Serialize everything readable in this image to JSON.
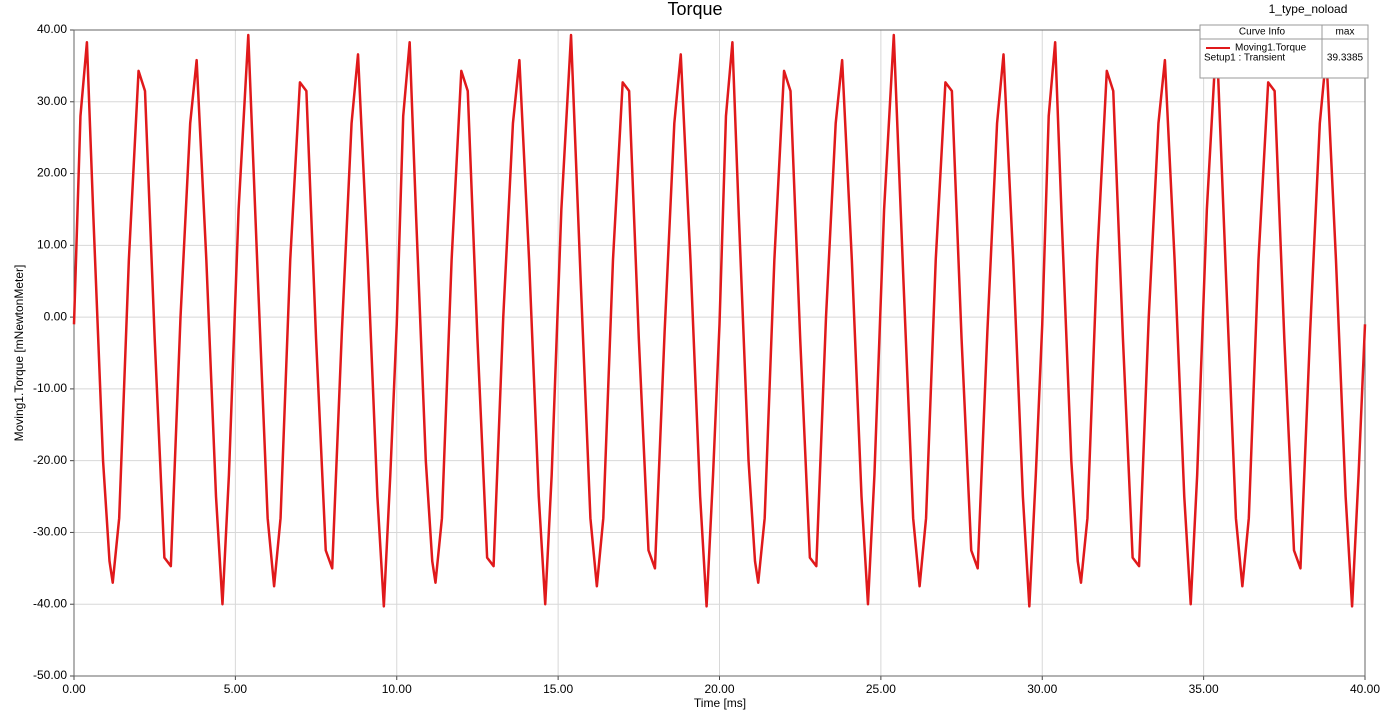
{
  "chart_data": {
    "type": "line",
    "title": "Torque",
    "subtitle": "1_type_noload",
    "x_label": "Time [ms]",
    "y_label": "Moving1.Torque [mNewtonMeter]",
    "legend": {
      "header": [
        "Curve Info",
        "max"
      ],
      "entries": [
        {
          "name": "Moving1.Torque",
          "setup": "Setup1 : Transient",
          "max": "39.3385"
        }
      ],
      "position": "top-right"
    },
    "grid": true,
    "xlim": [
      0,
      40
    ],
    "ylim": [
      -50,
      40
    ],
    "xticks": [
      {
        "value": 0,
        "label": "0.00"
      },
      {
        "value": 5,
        "label": "5.00"
      },
      {
        "value": 10,
        "label": "10.00"
      },
      {
        "value": 15,
        "label": "15.00"
      },
      {
        "value": 20,
        "label": "20.00"
      },
      {
        "value": 25,
        "label": "25.00"
      },
      {
        "value": 30,
        "label": "30.00"
      },
      {
        "value": 35,
        "label": "35.00"
      },
      {
        "value": 40,
        "label": "40.00"
      }
    ],
    "yticks": [
      {
        "value": -50,
        "label": "-50.00"
      },
      {
        "value": -40,
        "label": "-40.00"
      },
      {
        "value": -30,
        "label": "-30.00"
      },
      {
        "value": -20,
        "label": "-20.00"
      },
      {
        "value": -10,
        "label": "-10.00"
      },
      {
        "value": 0,
        "label": "0.00"
      },
      {
        "value": 10,
        "label": "10.00"
      },
      {
        "value": 20,
        "label": "20.00"
      },
      {
        "value": 30,
        "label": "30.00"
      },
      {
        "value": 40,
        "label": "40.00"
      }
    ],
    "x": [
      0,
      0.2,
      0.4,
      0.6,
      0.9,
      1.1,
      1.2,
      1.4,
      1.7,
      2,
      2.2,
      2.5,
      2.8,
      3,
      3.3,
      3.6,
      3.8,
      4.1,
      4.4,
      4.6,
      4.8,
      5.1,
      5.4,
      5.7,
      6,
      6.2,
      6.4,
      6.7,
      7,
      7.2,
      7.5,
      7.8,
      8,
      8.3,
      8.6,
      8.8,
      9.1,
      9.4,
      9.6,
      9.8,
      10,
      10.2,
      10.4,
      10.6,
      10.9,
      11.1,
      11.2,
      11.4,
      11.7,
      12,
      12.2,
      12.5,
      12.8,
      13,
      13.3,
      13.6,
      13.8,
      14.1,
      14.4,
      14.6,
      14.8,
      15.1,
      15.4,
      15.7,
      16,
      16.2,
      16.4,
      16.7,
      17,
      17.2,
      17.5,
      17.8,
      18,
      18.3,
      18.6,
      18.8,
      19.1,
      19.4,
      19.6,
      19.8,
      20,
      20.2,
      20.4,
      20.6,
      20.9,
      21.1,
      21.2,
      21.4,
      21.7,
      22,
      22.2,
      22.5,
      22.8,
      23,
      23.3,
      23.6,
      23.8,
      24.1,
      24.4,
      24.6,
      24.8,
      25.1,
      25.4,
      25.7,
      26,
      26.2,
      26.4,
      26.7,
      27,
      27.2,
      27.5,
      27.8,
      28,
      28.3,
      28.6,
      28.8,
      29.1,
      29.4,
      29.6,
      29.8,
      30,
      30.2,
      30.4,
      30.6,
      30.9,
      31.1,
      31.2,
      31.4,
      31.7,
      32,
      32.2,
      32.5,
      32.8,
      33,
      33.3,
      33.6,
      33.8,
      34.1,
      34.4,
      34.6,
      34.8,
      35.1,
      35.4,
      35.7,
      36,
      36.2,
      36.4,
      36.7,
      37,
      37.2,
      37.5,
      37.8,
      38,
      38.3,
      38.6,
      38.8,
      39.1,
      39.4,
      39.6,
      39.8,
      40
    ],
    "series": [
      {
        "name": "Moving1.Torque",
        "color": "#e0191b",
        "values": [
          -1,
          28,
          38.3,
          14,
          -20,
          -34,
          -37,
          -28,
          8,
          34.3,
          31.5,
          -3,
          -33.5,
          -34.7,
          0,
          27,
          35.8,
          8,
          -25,
          -40,
          -22,
          15,
          39.3,
          5,
          -28,
          -37.5,
          -28,
          8,
          32.7,
          31.5,
          -3,
          -32.5,
          -35,
          -2,
          27,
          36.6,
          8,
          -25,
          -40.3,
          -22,
          -1,
          28,
          38.3,
          14,
          -20,
          -34,
          -37,
          -28,
          8,
          34.3,
          31.5,
          -3,
          -33.5,
          -34.7,
          0,
          27,
          35.8,
          8,
          -25,
          -40,
          -22,
          15,
          39.3,
          5,
          -28,
          -37.5,
          -28,
          8,
          32.7,
          31.5,
          -3,
          -32.5,
          -35,
          -2,
          27,
          36.6,
          8,
          -25,
          -40.3,
          -22,
          -1,
          28,
          38.3,
          14,
          -20,
          -34,
          -37,
          -28,
          8,
          34.3,
          31.5,
          -3,
          -33.5,
          -34.7,
          0,
          27,
          35.8,
          8,
          -25,
          -40,
          -22,
          15,
          39.3,
          5,
          -28,
          -37.5,
          -28,
          8,
          32.7,
          31.5,
          -3,
          -32.5,
          -35,
          -2,
          27,
          36.6,
          8,
          -25,
          -40.3,
          -22,
          -1,
          28,
          38.3,
          14,
          -20,
          -34,
          -37,
          -28,
          8,
          34.3,
          31.5,
          -3,
          -33.5,
          -34.7,
          0,
          27,
          35.8,
          8,
          -25,
          -40,
          -22,
          15,
          39.3,
          5,
          -28,
          -37.5,
          -28,
          8,
          32.7,
          31.5,
          -3,
          -32.5,
          -35,
          -2,
          27,
          36.6,
          8,
          -25,
          -40.3,
          -22,
          -1
        ]
      }
    ]
  }
}
